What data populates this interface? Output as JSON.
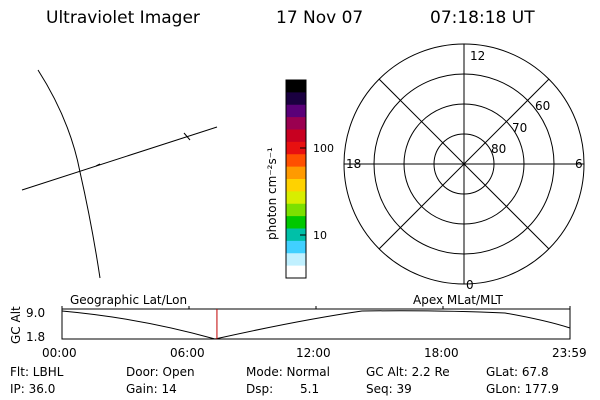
{
  "header": {
    "instrument": "Ultraviolet Imager",
    "date": "17 Nov 07",
    "time": "07:18:18 UT"
  },
  "colorbar": {
    "unit_label": "photon cm⁻²s⁻¹",
    "ticks": [
      "100",
      "10"
    ],
    "colors": [
      "#000000",
      "#1a0040",
      "#5a0078",
      "#9a0050",
      "#c80020",
      "#e81010",
      "#ff5000",
      "#ff9a00",
      "#ffd200",
      "#d8ee00",
      "#7ce000",
      "#00c800",
      "#00c0a8",
      "#40d0ff",
      "#c0f0ff",
      "#ffffff"
    ]
  },
  "polar_plot": {
    "mlt_labels": {
      "top": "12",
      "left": "18",
      "right": "6",
      "bottom": "0"
    },
    "lat_labels": [
      "60",
      "70",
      "80"
    ]
  },
  "time_panel": {
    "gc_alt_label": "GC Alt",
    "y_top": "9.0",
    "y_bottom": "1.8",
    "left_caption": "Geographic Lat/Lon",
    "right_caption": "Apex MLat/MLT",
    "times": [
      "00:00",
      "06:00",
      "12:00",
      "18:00",
      "23:59"
    ],
    "cursor_fraction": 0.305,
    "cursor_color": "#c00000"
  },
  "stats": {
    "flt": "Flt: LBHL",
    "ip": "IP: 36.0",
    "door": "Door: Open",
    "gain": "Gain: 14",
    "mode": "Mode: Normal",
    "dsp_label": "Dsp:",
    "dsp_value": "5.1",
    "gc_alt": "GC Alt: 2.2 Re",
    "seq": "Seq: 39",
    "glat": "GLat: 67.8",
    "glon": "GLon: 177.9"
  }
}
